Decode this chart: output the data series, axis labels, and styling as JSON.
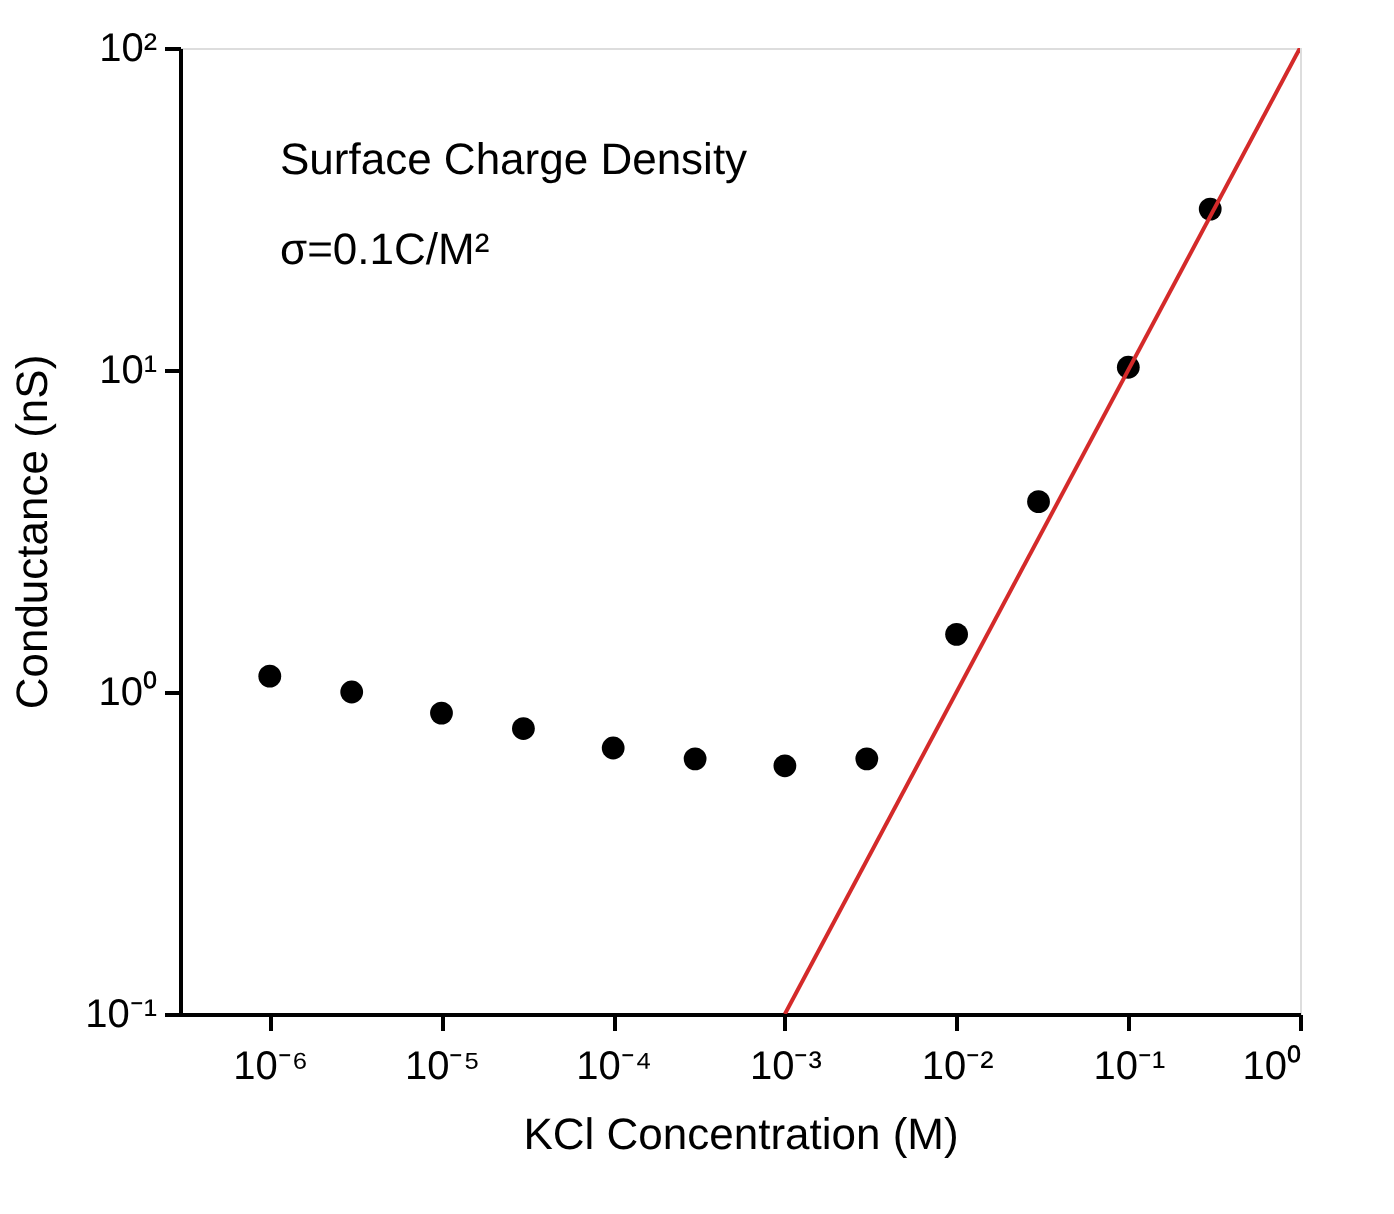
{
  "chart_data": {
    "type": "scatter",
    "xlabel": "KCl Concentration (M)",
    "ylabel": "Conductance (nS)",
    "annotations": [
      "Surface Charge Density",
      "σ=0.1C/M²"
    ],
    "x": [
      1e-06,
      3e-06,
      1e-05,
      3e-05,
      0.0001,
      0.0003,
      0.001,
      0.003,
      0.01,
      0.03,
      0.1,
      0.3
    ],
    "series": [
      {
        "color": "#000000",
        "marker": "circle",
        "values": [
          1.12,
          1.0,
          0.86,
          0.77,
          0.67,
          0.62,
          0.59,
          0.62,
          1.51,
          3.9,
          10.2,
          31.6
        ]
      },
      {
        "type": "line",
        "color": "#d42a2a",
        "line_style": "solid",
        "marker": "none",
        "x": [
          0.001,
          1
        ],
        "values": [
          0.1,
          100
        ]
      }
    ],
    "log": "xy",
    "xlim": [
      3e-07,
      1
    ],
    "ylim": [
      0.1,
      100
    ],
    "xticks": [
      {
        "value": 1e-06,
        "label": "10⁻⁶"
      },
      {
        "value": 1e-05,
        "label": "10⁻⁵"
      },
      {
        "value": 0.0001,
        "label": "10⁻⁴"
      },
      {
        "value": 0.001,
        "label": "10⁻³"
      },
      {
        "value": 0.01,
        "label": "10⁻²"
      },
      {
        "value": 0.1,
        "label": "10⁻¹"
      },
      {
        "value": 1,
        "label": "10⁰"
      }
    ],
    "yticks": [
      {
        "value": 0.1,
        "label": "10⁻¹"
      },
      {
        "value": 1,
        "label": "10⁰"
      },
      {
        "value": 10,
        "label": "10¹"
      },
      {
        "value": 100,
        "label": "10²"
      }
    ],
    "grid": false
  }
}
